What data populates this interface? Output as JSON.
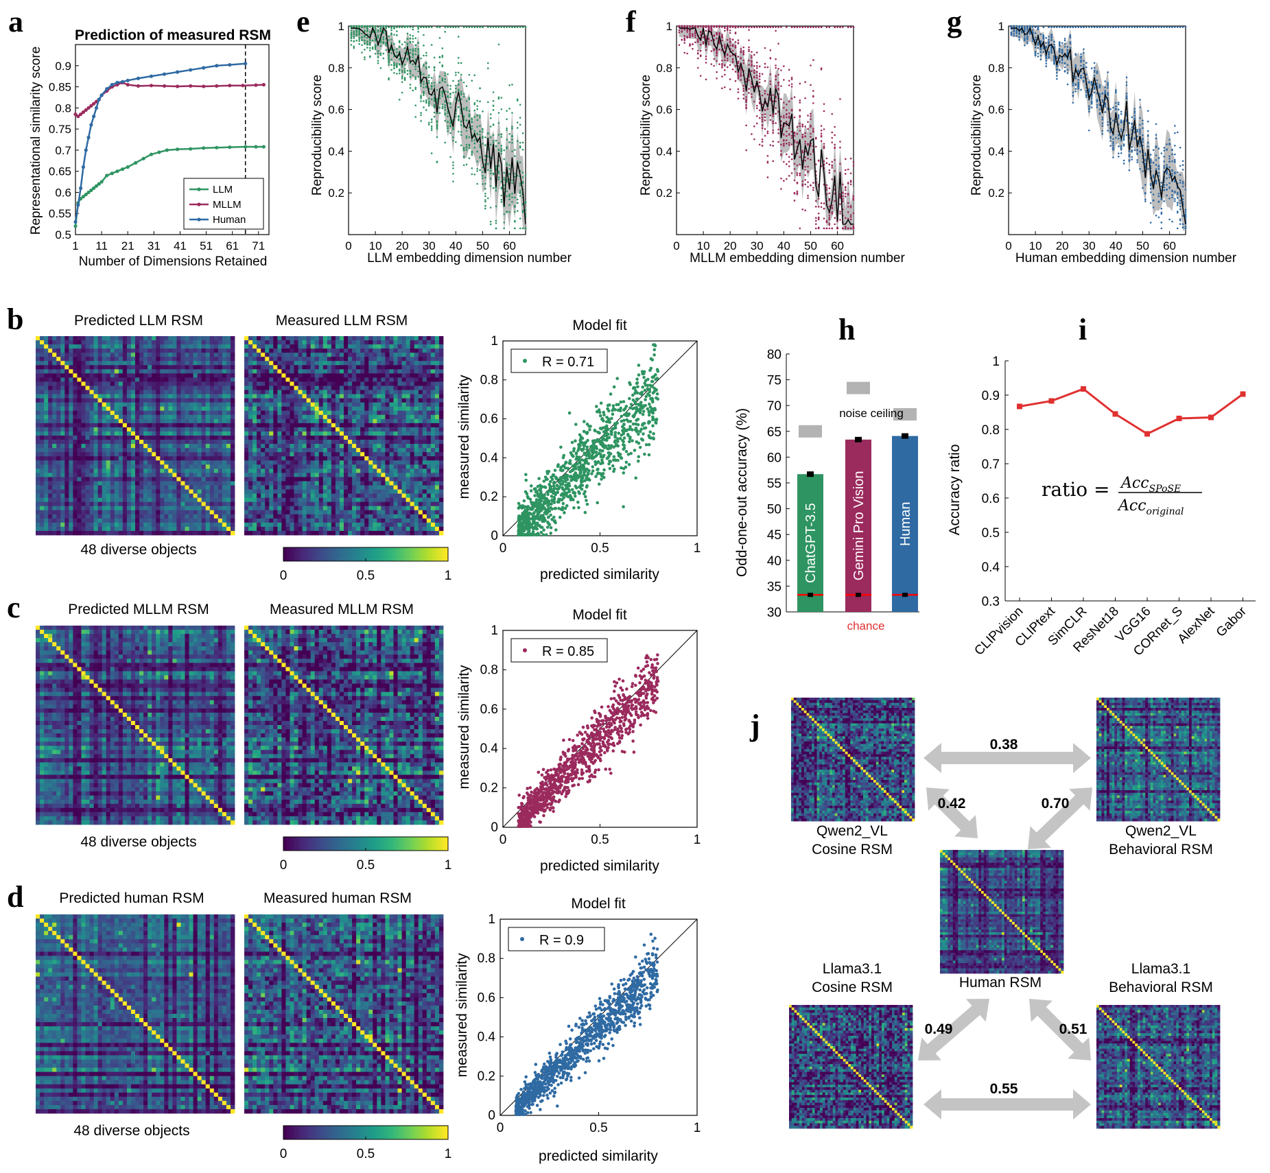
{
  "panel_labels": {
    "a": "a",
    "b": "b",
    "c": "c",
    "d": "d",
    "e": "e",
    "f": "f",
    "g": "g",
    "h": "h",
    "i": "i",
    "j": "j"
  },
  "colors": {
    "llm": "#2e9461",
    "mllm": "#9b2a5d",
    "human": "#2f6aa3",
    "band": "#bdbdbd",
    "accent_red": "#e03030",
    "bar_gray": "#b3b3b3"
  },
  "chart_data": [
    {
      "id": "a",
      "type": "line",
      "title": "Prediction of measured RSM",
      "xlabel": "Number of Dimensions Retained",
      "ylabel": "Representational similarity score",
      "xlim": [
        1,
        75
      ],
      "ylim": [
        0.5,
        0.95
      ],
      "xticks": [
        1,
        11,
        21,
        31,
        41,
        51,
        61,
        71
      ],
      "yticks": [
        0.5,
        0.55,
        0.6,
        0.65,
        0.7,
        0.75,
        0.8,
        0.85,
        0.9
      ],
      "vline_x": 66,
      "legend": "bottom-right",
      "series": [
        {
          "name": "LLM",
          "color": "llm",
          "x": [
            1,
            2,
            3,
            4,
            5,
            6,
            7,
            8,
            9,
            10,
            11,
            13,
            15,
            17,
            19,
            21,
            24,
            27,
            30,
            33,
            36,
            40,
            45,
            50,
            55,
            60,
            66,
            70,
            73
          ],
          "y": [
            0.52,
            0.575,
            0.585,
            0.59,
            0.595,
            0.6,
            0.605,
            0.61,
            0.615,
            0.62,
            0.625,
            0.64,
            0.645,
            0.65,
            0.655,
            0.66,
            0.67,
            0.68,
            0.69,
            0.695,
            0.7,
            0.702,
            0.703,
            0.705,
            0.706,
            0.707,
            0.708,
            0.708,
            0.708
          ]
        },
        {
          "name": "MLLM",
          "color": "mllm",
          "x": [
            1,
            2,
            3,
            4,
            5,
            6,
            7,
            8,
            9,
            10,
            11,
            13,
            15,
            17,
            19,
            21,
            25,
            30,
            35,
            40,
            45,
            50,
            55,
            60,
            65,
            70,
            73
          ],
          "y": [
            0.785,
            0.78,
            0.785,
            0.79,
            0.795,
            0.8,
            0.805,
            0.81,
            0.815,
            0.82,
            0.83,
            0.84,
            0.85,
            0.855,
            0.86,
            0.855,
            0.852,
            0.853,
            0.852,
            0.851,
            0.852,
            0.851,
            0.852,
            0.853,
            0.853,
            0.854,
            0.855
          ]
        },
        {
          "name": "Human",
          "color": "human",
          "x": [
            1,
            2,
            3,
            4,
            5,
            6,
            7,
            8,
            9,
            10,
            11,
            13,
            15,
            17,
            19,
            21,
            25,
            30,
            35,
            40,
            45,
            50,
            55,
            60,
            66
          ],
          "y": [
            0.53,
            0.57,
            0.61,
            0.66,
            0.7,
            0.73,
            0.76,
            0.78,
            0.8,
            0.82,
            0.83,
            0.845,
            0.855,
            0.86,
            0.862,
            0.865,
            0.87,
            0.875,
            0.88,
            0.885,
            0.89,
            0.895,
            0.9,
            0.902,
            0.905
          ]
        }
      ]
    },
    {
      "id": "e",
      "type": "scatter",
      "xlabel": "LLM embedding dimension number",
      "ylabel": "Reproducibility score",
      "xlim": [
        0,
        66
      ],
      "ylim": [
        0,
        1
      ],
      "xticks": [
        0,
        10,
        20,
        30,
        40,
        50,
        60
      ],
      "yticks": [
        0.2,
        0.4,
        0.6,
        0.8,
        1
      ],
      "color": "llm",
      "ndim": 66,
      "low": 0.25,
      "noise": 0.13
    },
    {
      "id": "f",
      "type": "scatter",
      "xlabel": "MLLM embedding dimension number",
      "ylabel": "Reproducibility score",
      "xlim": [
        0,
        66
      ],
      "ylim": [
        0,
        1
      ],
      "xticks": [
        0,
        10,
        20,
        30,
        40,
        50,
        60
      ],
      "yticks": [
        0.2,
        0.4,
        0.6,
        0.8,
        1
      ],
      "color": "mllm",
      "ndim": 66,
      "low": 0.2,
      "noise": 0.14
    },
    {
      "id": "g",
      "type": "scatter",
      "xlabel": "Human embedding dimension number",
      "ylabel": "Reproducibility score",
      "xlim": [
        0,
        66
      ],
      "ylim": [
        0,
        1
      ],
      "xticks": [
        0,
        10,
        20,
        30,
        40,
        50,
        60
      ],
      "yticks": [
        0.2,
        0.4,
        0.6,
        0.8,
        1
      ],
      "color": "human",
      "ndim": 66,
      "low": 0.25,
      "noise": 0.07
    },
    {
      "id": "b",
      "type": "heatmap",
      "left_title": "Predicted LLM RSM",
      "right_title": "Measured LLM RSM",
      "caption": "48 diverse objects",
      "n": 48,
      "colorbar_ticks": [
        "0",
        "0.5",
        "1"
      ],
      "fit": {
        "title": "Model fit",
        "legend": "R = 0.71",
        "r": 0.71,
        "xlabel": "predicted similarity",
        "ylabel": "measured similarity",
        "xlim": [
          0,
          1
        ],
        "ylim": [
          0,
          1
        ],
        "xticks": [
          "0",
          "0.5",
          "1"
        ],
        "yticks": [
          "0",
          "0.2",
          "0.4",
          "0.6",
          "0.8",
          "1"
        ],
        "color": "llm"
      }
    },
    {
      "id": "c",
      "type": "heatmap",
      "left_title": "Predicted MLLM RSM",
      "right_title": "Measured MLLM RSM",
      "caption": "48 diverse objects",
      "n": 48,
      "colorbar_ticks": [
        "0",
        "0.5",
        "1"
      ],
      "fit": {
        "title": "Model fit",
        "legend": "R = 0.85",
        "r": 0.85,
        "xlabel": "predicted similarity",
        "ylabel": "measured similarity",
        "xlim": [
          0,
          1
        ],
        "ylim": [
          0,
          1
        ],
        "xticks": [
          "0",
          "0.5",
          "1"
        ],
        "yticks": [
          "0",
          "0.2",
          "0.4",
          "0.6",
          "0.8",
          "1"
        ],
        "color": "mllm"
      }
    },
    {
      "id": "d",
      "type": "heatmap",
      "left_title": "Predicted human RSM",
      "right_title": "Measured human RSM",
      "caption": "48 diverse objects",
      "n": 48,
      "colorbar_ticks": [
        "0",
        "0.5",
        "1"
      ],
      "fit": {
        "title": "Model fit",
        "legend": "R = 0.9",
        "r": 0.9,
        "xlabel": "predicted similarity",
        "ylabel": "measured similarity",
        "xlim": [
          0,
          1
        ],
        "ylim": [
          0,
          1
        ],
        "xticks": [
          "0",
          "0.5",
          "1"
        ],
        "yticks": [
          "0",
          "0.2",
          "0.4",
          "0.6",
          "0.8",
          "1"
        ],
        "color": "human"
      }
    },
    {
      "id": "h",
      "type": "bar",
      "ylabel": "Odd-one-out accuracy (%)",
      "ylim": [
        30,
        80
      ],
      "yticks": [
        30,
        35,
        40,
        45,
        50,
        55,
        60,
        65,
        70,
        75,
        80
      ],
      "categories": [
        "ChatGPT-3.5",
        "Gemini Pro Vision",
        "Human"
      ],
      "values": [
        56.7,
        63.4,
        64.1
      ],
      "bar_colors": [
        "llm",
        "mllm",
        "human"
      ],
      "noise_ceiling": [
        65.0,
        73.4,
        68.3
      ],
      "chance": 33.3,
      "noise_label": "noise ceiling",
      "chance_label": "chance"
    },
    {
      "id": "i",
      "type": "line",
      "ylabel": "Accuracy ratio",
      "ylim": [
        0.3,
        1
      ],
      "yticks": [
        0.3,
        0.4,
        0.5,
        0.6,
        0.7,
        0.8,
        0.9,
        1
      ],
      "categories": [
        "CLIPvision",
        "CLIPtext",
        "SimCLR",
        "ResNet18",
        "VGG16",
        "CORnet_S",
        "AlexNet",
        "Gabor"
      ],
      "values": [
        0.867,
        0.883,
        0.918,
        0.845,
        0.787,
        0.832,
        0.835,
        0.903
      ],
      "formula": {
        "lhs": "ratio =",
        "num_main": "Acc",
        "num_sub": "SPoSE",
        "den_main": "Acc",
        "den_sub": "original"
      },
      "color": "accent_red"
    },
    {
      "id": "j",
      "type": "diagram",
      "labels": {
        "qwen_cos": [
          "Qwen2_VL",
          "Cosine RSM"
        ],
        "qwen_beh": [
          "Qwen2_VL",
          "Behavioral RSM"
        ],
        "human": [
          "Human RSM"
        ],
        "llama_cos": [
          "Llama3.1",
          "Cosine RSM"
        ],
        "llama_beh": [
          "Llama3.1",
          "Behavioral RSM"
        ]
      },
      "values": {
        "top": "0.38",
        "qwen_cos_human": "0.42",
        "qwen_beh_human": "0.70",
        "llama_cos_human": "0.49",
        "llama_beh_human": "0.51",
        "bottom": "0.55"
      }
    }
  ]
}
